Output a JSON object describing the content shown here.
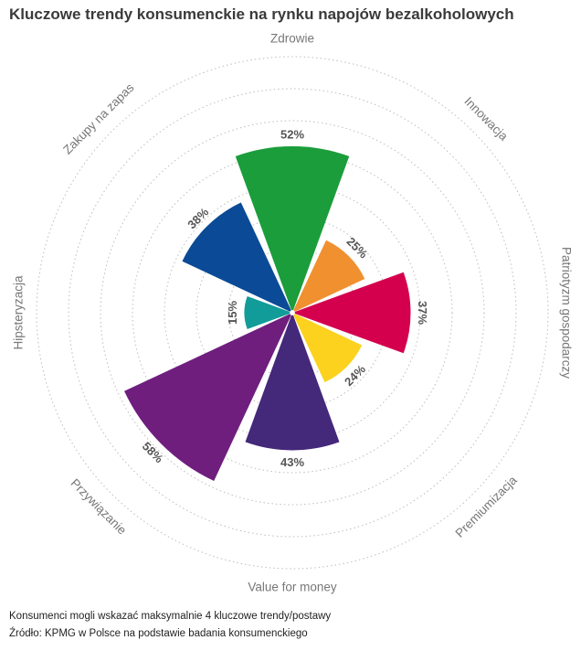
{
  "title": "Kluczowe trendy konsumenckie na rynku napojów bezalkoholowych",
  "footnotes": [
    "Konsumenci mogli wskazać maksymalnie 4 kluczowe trendy/postawy",
    "Źródło: KPMG w Polsce na podstawie badania konsumenckiego"
  ],
  "chart_data": {
    "type": "polar-area",
    "unit": "%",
    "max_value": 60,
    "grid": "dotted concentric circles",
    "categories": [
      "Zdrowie",
      "Innowacja",
      "Patriotyzm gospodarczy",
      "Premiumizacja",
      "Value for money",
      "Przywiązanie",
      "Hipsteryzacja",
      "Zakupy na zapas"
    ],
    "values": [
      52,
      25,
      37,
      24,
      43,
      58,
      15,
      38
    ],
    "value_labels": [
      "52%",
      "25%",
      "37%",
      "24%",
      "43%",
      "58%",
      "15%",
      "38%"
    ],
    "colors": [
      "#1a9d3a",
      "#f0902f",
      "#d4004e",
      "#fcd21f",
      "#44287a",
      "#6f1e7e",
      "#119c99",
      "#0b4a96"
    ]
  }
}
